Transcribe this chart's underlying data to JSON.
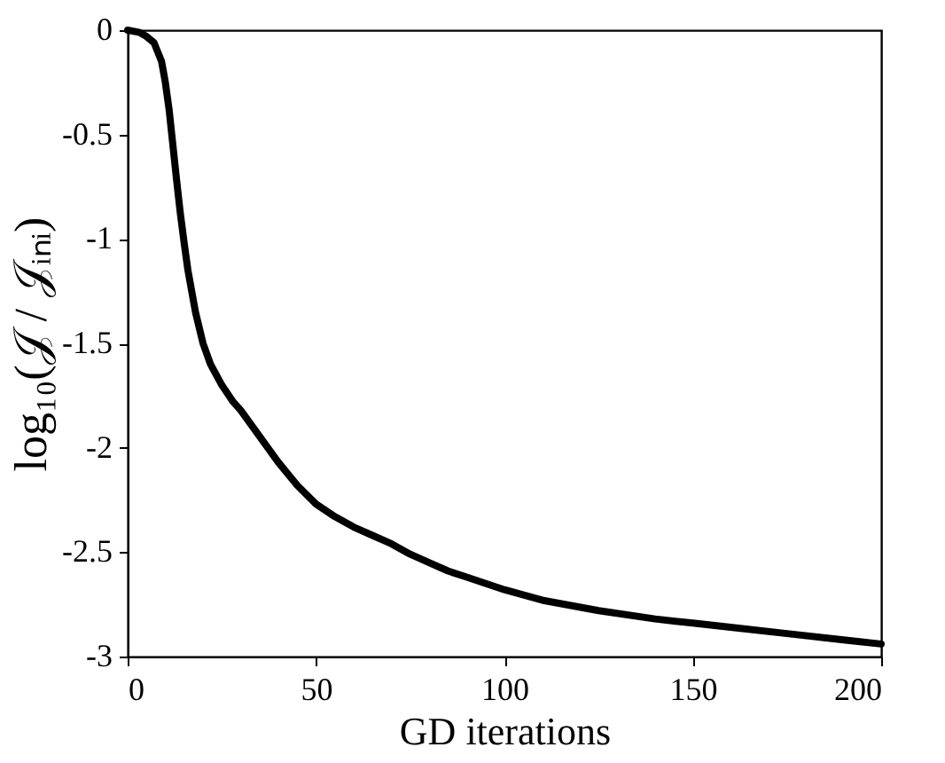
{
  "chart_data": {
    "type": "line",
    "xlabel": "GD iterations",
    "ylabel": "log₁₀(𝒥 / 𝒥ᵢₙᵢ)",
    "x": [
      0,
      3,
      5,
      7,
      9,
      10,
      11,
      12,
      13,
      14,
      15,
      16,
      17,
      18,
      20,
      22,
      25,
      28,
      30,
      32,
      36,
      40,
      45,
      50,
      55,
      60,
      65,
      70,
      75,
      80,
      85,
      90,
      100,
      110,
      125,
      140,
      150,
      160,
      175,
      190,
      200
    ],
    "series": [
      {
        "color": "#000000",
        "values": [
          0,
          -0.01,
          -0.03,
          -0.06,
          -0.15,
          -0.25,
          -0.38,
          -0.55,
          -0.72,
          -0.88,
          -1.02,
          -1.15,
          -1.25,
          -1.35,
          -1.5,
          -1.6,
          -1.7,
          -1.78,
          -1.82,
          -1.87,
          -1.97,
          -2.07,
          -2.18,
          -2.27,
          -2.33,
          -2.38,
          -2.42,
          -2.46,
          -2.51,
          -2.55,
          -2.59,
          -2.62,
          -2.68,
          -2.73,
          -2.78,
          -2.82,
          -2.84,
          -2.86,
          -2.89,
          -2.92,
          -2.94
        ]
      }
    ],
    "xlim": [
      0,
      200
    ],
    "ylim": [
      -3,
      0
    ],
    "xticks": [
      0,
      50,
      100,
      150,
      200
    ],
    "yticks": [
      -3,
      -2.5,
      -2,
      -1.5,
      -1,
      -0.5,
      0
    ],
    "grid": false,
    "marker": "none",
    "line_style": "solid"
  }
}
